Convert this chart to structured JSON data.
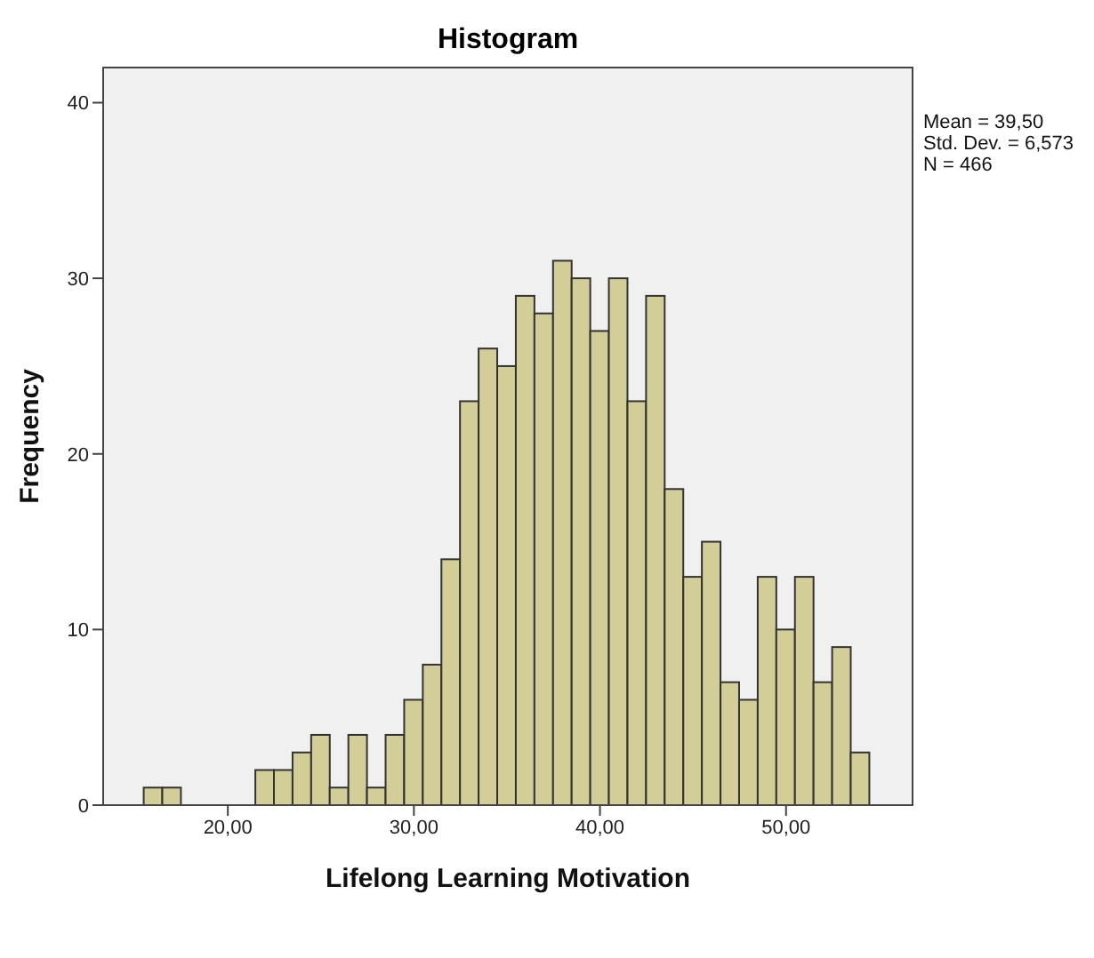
{
  "chart_data": {
    "type": "histogram",
    "title": "Histogram",
    "xlabel": "Lifelong Learning Motivation",
    "ylabel": "Frequency",
    "annotations": [
      "Mean = 39,50",
      "Std. Dev. = 6,573",
      "N = 466"
    ],
    "bins": [
      15.5,
      16.5,
      17.5,
      18.5,
      19.5,
      20.5,
      21.5,
      22.5,
      23.5,
      24.5,
      25.5,
      26.5,
      27.5,
      28.5,
      29.5,
      30.5,
      31.5,
      32.5,
      33.5,
      34.5,
      35.5,
      36.5,
      37.5,
      38.5,
      39.5,
      40.5,
      41.5,
      42.5,
      43.5,
      44.5,
      45.5,
      46.5,
      47.5,
      48.5,
      49.5,
      50.5,
      51.5,
      52.5,
      53.5,
      54.5
    ],
    "values": [
      1,
      1,
      0,
      0,
      0,
      0,
      2,
      2,
      3,
      4,
      1,
      4,
      1,
      4,
      6,
      8,
      14,
      23,
      26,
      25,
      29,
      28,
      31,
      30,
      27,
      30,
      23,
      29,
      18,
      13,
      15,
      7,
      6,
      13,
      10,
      13,
      7,
      9,
      3
    ],
    "color": "#d3ce98",
    "xlim": [
      13.3,
      56.8
    ],
    "xticks": [
      {
        "value": 20,
        "label": "20,00"
      },
      {
        "value": 30,
        "label": "30,00"
      },
      {
        "value": 40,
        "label": "40,00"
      },
      {
        "value": 50,
        "label": "50,00"
      }
    ],
    "ylim": [
      0,
      42
    ],
    "yticks": [
      0,
      10,
      20,
      30,
      40
    ]
  }
}
